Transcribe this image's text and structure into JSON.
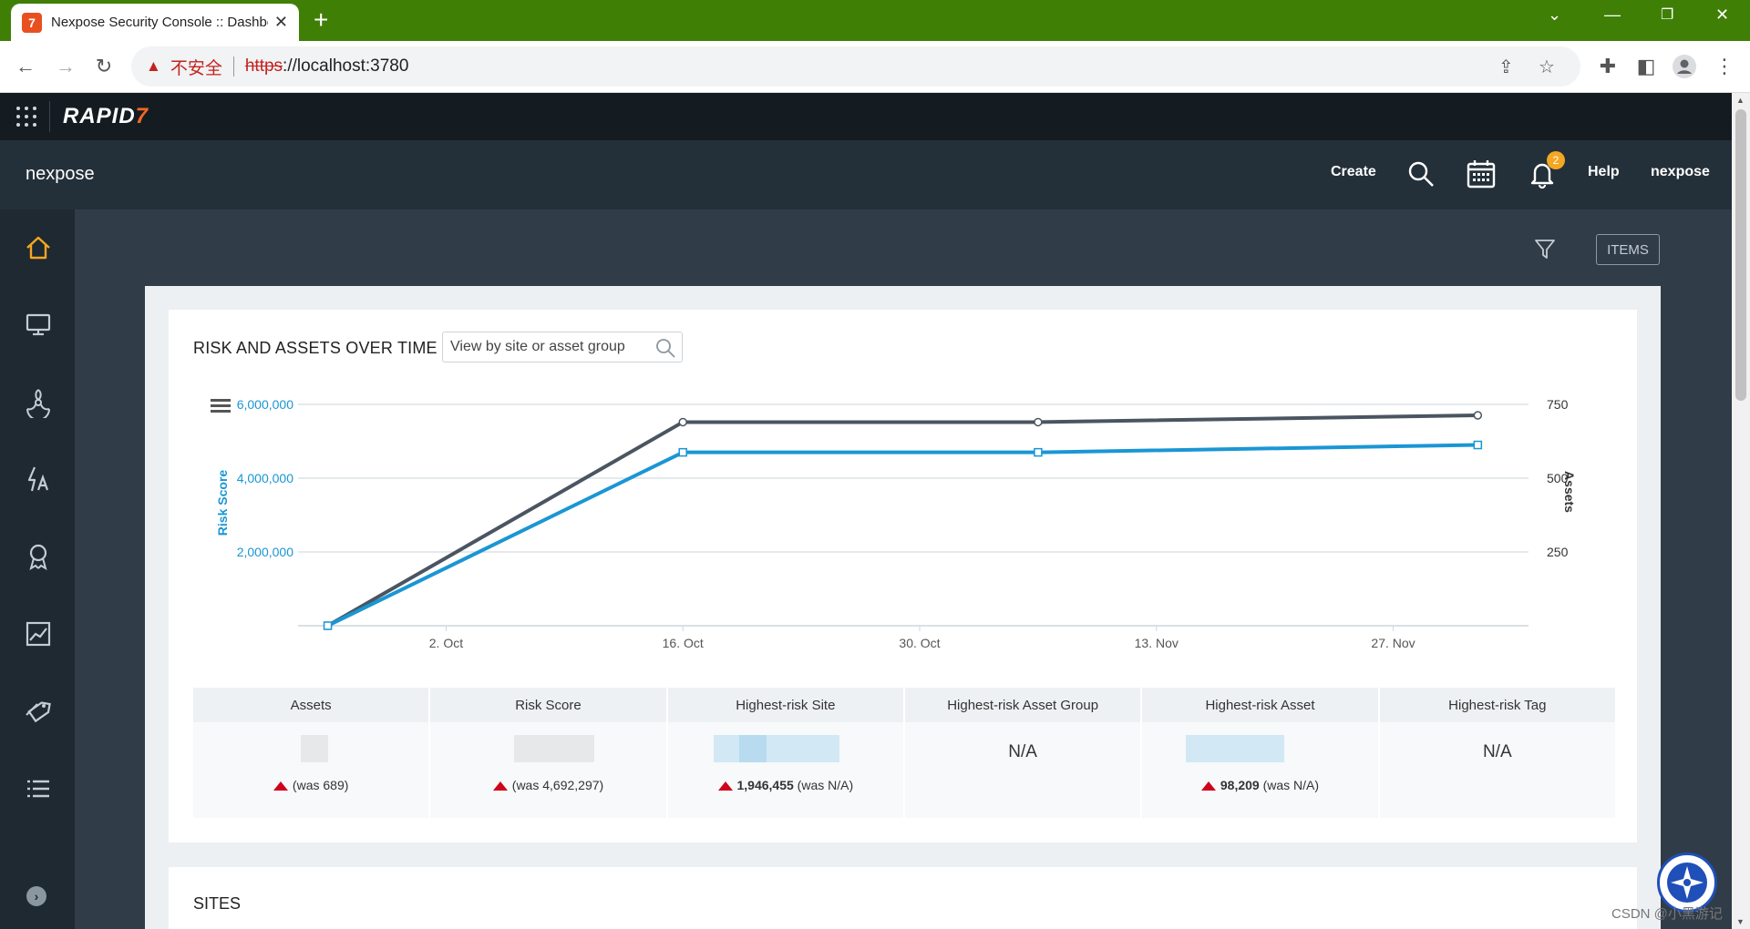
{
  "browser": {
    "tab_title": "Nexpose Security Console :: Dashboard",
    "tab_favicon": "7",
    "newtab_label": "+",
    "insecure_label": "不安全",
    "url_scheme": "https",
    "url_rest": "://localhost:3780"
  },
  "rapid7": {
    "logo_text": "RAPID",
    "logo_mark": "7"
  },
  "header": {
    "brand": "nexpose",
    "create_label": "Create",
    "help_label": "Help",
    "user_label": "nexpose",
    "notification_count": "2"
  },
  "nav": {
    "items": [
      "home",
      "assets",
      "vulnerabilities",
      "policies",
      "certifications",
      "reports",
      "tags",
      "tasks"
    ]
  },
  "toolbar": {
    "items_label": "ITEMS"
  },
  "risk_card": {
    "title": "RISK AND ASSETS OVER TIME",
    "search_placeholder": "View by site or asset group"
  },
  "chart_data": {
    "type": "line",
    "x": [
      "2023-09-25",
      "2023-10-16",
      "2023-11-06",
      "2023-12-02"
    ],
    "x_ticks": [
      "2. Oct",
      "16. Oct",
      "30. Oct",
      "13. Nov",
      "27. Nov"
    ],
    "y_left": {
      "label": "Risk Score",
      "ticks": [
        "2,000,000",
        "4,000,000",
        "6,000,000"
      ],
      "range": [
        0,
        6000000
      ]
    },
    "y_right": {
      "label": "Assets",
      "ticks": [
        "250",
        "500",
        "750"
      ],
      "range": [
        0,
        750
      ]
    },
    "series": [
      {
        "axis": "right",
        "color": "#4a5561",
        "values": [
          0,
          690,
          690,
          713
        ]
      },
      {
        "axis": "left",
        "color": "#1a96d4",
        "values": [
          0,
          4700000,
          4700000,
          4900000
        ]
      }
    ],
    "grid": true,
    "legend": "none"
  },
  "stats": [
    {
      "label": "Assets",
      "na": "",
      "was": "(was 689)",
      "strong": ""
    },
    {
      "label": "Risk Score",
      "na": "",
      "was": "(was 4,692,297)",
      "strong": ""
    },
    {
      "label": "Highest-risk Site",
      "na": "",
      "was": " (was N/A)",
      "strong": "1,946,455"
    },
    {
      "label": "Highest-risk Asset Group",
      "na": "N/A",
      "was": "",
      "strong": ""
    },
    {
      "label": "Highest-risk Asset",
      "na": "",
      "was": " (was N/A)",
      "strong": "98,209"
    },
    {
      "label": "Highest-risk Tag",
      "na": "N/A",
      "was": "",
      "strong": ""
    }
  ],
  "sites_card": {
    "title": "SITES"
  },
  "watermark": "CSDN @小黑游记",
  "colors": {
    "tabstrip": "#3f7f06",
    "accent_orange": "#f5a623",
    "risk_blue": "#1a96d4",
    "asset_gray": "#4a5561"
  }
}
